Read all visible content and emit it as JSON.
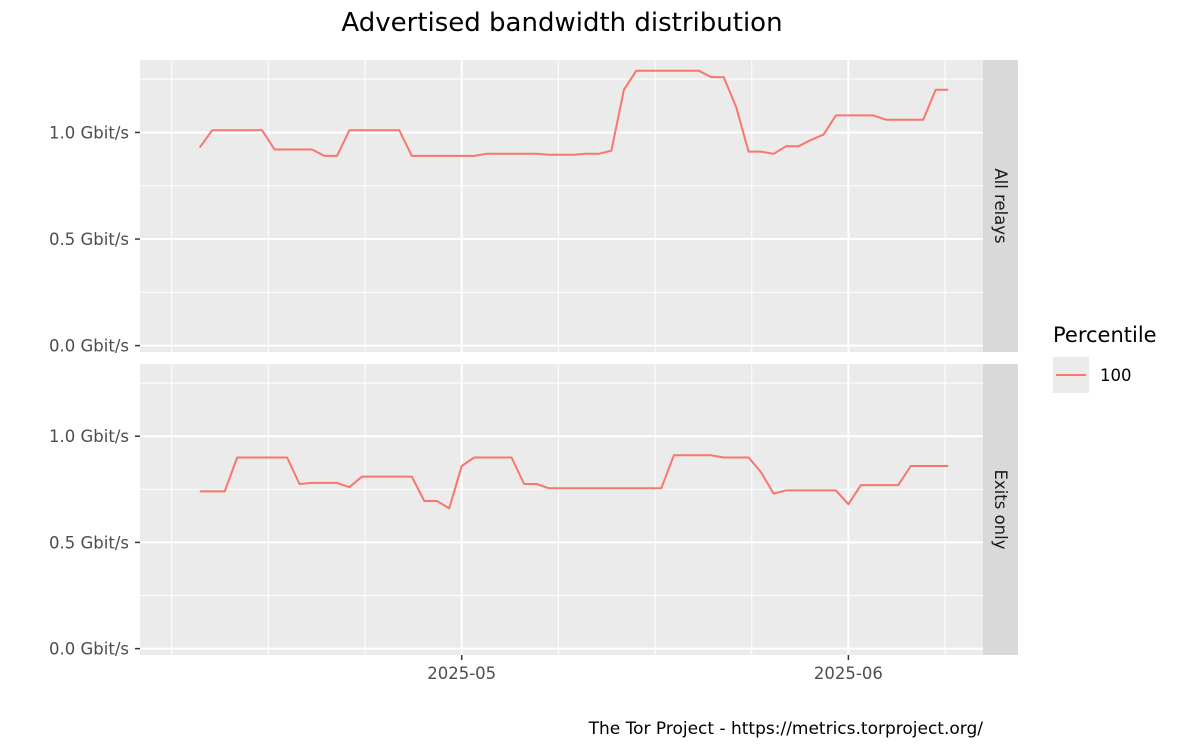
{
  "chart_data": {
    "type": "line",
    "title": "Advertised bandwidth distribution",
    "caption": "The Tor Project - https://metrics.torproject.org/",
    "x_ticks": [
      {
        "label": "2025-05",
        "date": "2025-05-01"
      },
      {
        "label": "2025-06",
        "date": "2025-06-01"
      }
    ],
    "x_range": [
      "2025-04-08",
      "2025-06-09"
    ],
    "y_ticks": [
      {
        "label": "0.0 Gbit/s",
        "value": 0.0
      },
      {
        "label": "0.5 Gbit/s",
        "value": 0.5
      },
      {
        "label": "1.0 Gbit/s",
        "value": 1.0
      }
    ],
    "y_range": [
      -0.03,
      1.34
    ],
    "grid": true,
    "legend": {
      "title": "Percentile",
      "placement": "right",
      "entries": [
        "100"
      ]
    },
    "colors": {
      "series": "#F8766D",
      "panel": "#EBEBEB",
      "grid": "#FFFFFF",
      "strip": "#D9D9D9"
    },
    "panels": [
      {
        "label": "All relays",
        "series": [
          {
            "name": "100",
            "points": [
              [
                "2025-04-10",
                0.93
              ],
              [
                "2025-04-11",
                1.01
              ],
              [
                "2025-04-12",
                1.01
              ],
              [
                "2025-04-13",
                1.01
              ],
              [
                "2025-04-14",
                1.01
              ],
              [
                "2025-04-15",
                1.01
              ],
              [
                "2025-04-16",
                0.92
              ],
              [
                "2025-04-17",
                0.92
              ],
              [
                "2025-04-18",
                0.92
              ],
              [
                "2025-04-19",
                0.92
              ],
              [
                "2025-04-20",
                0.89
              ],
              [
                "2025-04-21",
                0.89
              ],
              [
                "2025-04-22",
                1.01
              ],
              [
                "2025-04-23",
                1.01
              ],
              [
                "2025-04-24",
                1.01
              ],
              [
                "2025-04-25",
                1.01
              ],
              [
                "2025-04-26",
                1.01
              ],
              [
                "2025-04-27",
                0.89
              ],
              [
                "2025-04-28",
                0.89
              ],
              [
                "2025-04-29",
                0.89
              ],
              [
                "2025-04-30",
                0.89
              ],
              [
                "2025-05-01",
                0.89
              ],
              [
                "2025-05-02",
                0.89
              ],
              [
                "2025-05-03",
                0.9
              ],
              [
                "2025-05-04",
                0.9
              ],
              [
                "2025-05-05",
                0.9
              ],
              [
                "2025-05-06",
                0.9
              ],
              [
                "2025-05-07",
                0.9
              ],
              [
                "2025-05-08",
                0.895
              ],
              [
                "2025-05-09",
                0.895
              ],
              [
                "2025-05-10",
                0.895
              ],
              [
                "2025-05-11",
                0.9
              ],
              [
                "2025-05-12",
                0.9
              ],
              [
                "2025-05-13",
                0.915
              ],
              [
                "2025-05-14",
                1.2
              ],
              [
                "2025-05-15",
                1.29
              ],
              [
                "2025-05-16",
                1.29
              ],
              [
                "2025-05-17",
                1.29
              ],
              [
                "2025-05-18",
                1.29
              ],
              [
                "2025-05-19",
                1.29
              ],
              [
                "2025-05-20",
                1.29
              ],
              [
                "2025-05-21",
                1.26
              ],
              [
                "2025-05-22",
                1.26
              ],
              [
                "2025-05-23",
                1.12
              ],
              [
                "2025-05-24",
                0.91
              ],
              [
                "2025-05-25",
                0.91
              ],
              [
                "2025-05-26",
                0.9
              ],
              [
                "2025-05-27",
                0.935
              ],
              [
                "2025-05-28",
                0.935
              ],
              [
                "2025-05-29",
                0.965
              ],
              [
                "2025-05-30",
                0.99
              ],
              [
                "2025-05-31",
                1.08
              ],
              [
                "2025-06-01",
                1.08
              ],
              [
                "2025-06-02",
                1.08
              ],
              [
                "2025-06-03",
                1.08
              ],
              [
                "2025-06-04",
                1.06
              ],
              [
                "2025-06-05",
                1.06
              ],
              [
                "2025-06-06",
                1.06
              ],
              [
                "2025-06-07",
                1.06
              ],
              [
                "2025-06-08",
                1.2
              ],
              [
                "2025-06-09",
                1.2
              ]
            ]
          }
        ]
      },
      {
        "label": "Exits only",
        "series": [
          {
            "name": "100",
            "points": [
              [
                "2025-04-10",
                0.74
              ],
              [
                "2025-04-11",
                0.74
              ],
              [
                "2025-04-12",
                0.74
              ],
              [
                "2025-04-13",
                0.9
              ],
              [
                "2025-04-14",
                0.9
              ],
              [
                "2025-04-15",
                0.9
              ],
              [
                "2025-04-16",
                0.9
              ],
              [
                "2025-04-17",
                0.9
              ],
              [
                "2025-04-18",
                0.775
              ],
              [
                "2025-04-19",
                0.78
              ],
              [
                "2025-04-20",
                0.78
              ],
              [
                "2025-04-21",
                0.78
              ],
              [
                "2025-04-22",
                0.76
              ],
              [
                "2025-04-23",
                0.81
              ],
              [
                "2025-04-24",
                0.81
              ],
              [
                "2025-04-25",
                0.81
              ],
              [
                "2025-04-26",
                0.81
              ],
              [
                "2025-04-27",
                0.81
              ],
              [
                "2025-04-28",
                0.695
              ],
              [
                "2025-04-29",
                0.695
              ],
              [
                "2025-04-30",
                0.66
              ],
              [
                "2025-05-01",
                0.86
              ],
              [
                "2025-05-02",
                0.9
              ],
              [
                "2025-05-03",
                0.9
              ],
              [
                "2025-05-04",
                0.9
              ],
              [
                "2025-05-05",
                0.9
              ],
              [
                "2025-05-06",
                0.775
              ],
              [
                "2025-05-07",
                0.775
              ],
              [
                "2025-05-08",
                0.755
              ],
              [
                "2025-05-09",
                0.755
              ],
              [
                "2025-05-10",
                0.755
              ],
              [
                "2025-05-11",
                0.755
              ],
              [
                "2025-05-12",
                0.755
              ],
              [
                "2025-05-13",
                0.755
              ],
              [
                "2025-05-14",
                0.755
              ],
              [
                "2025-05-15",
                0.755
              ],
              [
                "2025-05-16",
                0.755
              ],
              [
                "2025-05-17",
                0.755
              ],
              [
                "2025-05-18",
                0.91
              ],
              [
                "2025-05-19",
                0.91
              ],
              [
                "2025-05-20",
                0.91
              ],
              [
                "2025-05-21",
                0.91
              ],
              [
                "2025-05-22",
                0.9
              ],
              [
                "2025-05-23",
                0.9
              ],
              [
                "2025-05-24",
                0.9
              ],
              [
                "2025-05-25",
                0.83
              ],
              [
                "2025-05-26",
                0.73
              ],
              [
                "2025-05-27",
                0.745
              ],
              [
                "2025-05-28",
                0.745
              ],
              [
                "2025-05-29",
                0.745
              ],
              [
                "2025-05-30",
                0.745
              ],
              [
                "2025-05-31",
                0.745
              ],
              [
                "2025-06-01",
                0.68
              ],
              [
                "2025-06-02",
                0.77
              ],
              [
                "2025-06-03",
                0.77
              ],
              [
                "2025-06-04",
                0.77
              ],
              [
                "2025-06-05",
                0.77
              ],
              [
                "2025-06-06",
                0.86
              ],
              [
                "2025-06-07",
                0.86
              ],
              [
                "2025-06-08",
                0.86
              ],
              [
                "2025-06-09",
                0.86
              ]
            ]
          }
        ]
      }
    ]
  }
}
